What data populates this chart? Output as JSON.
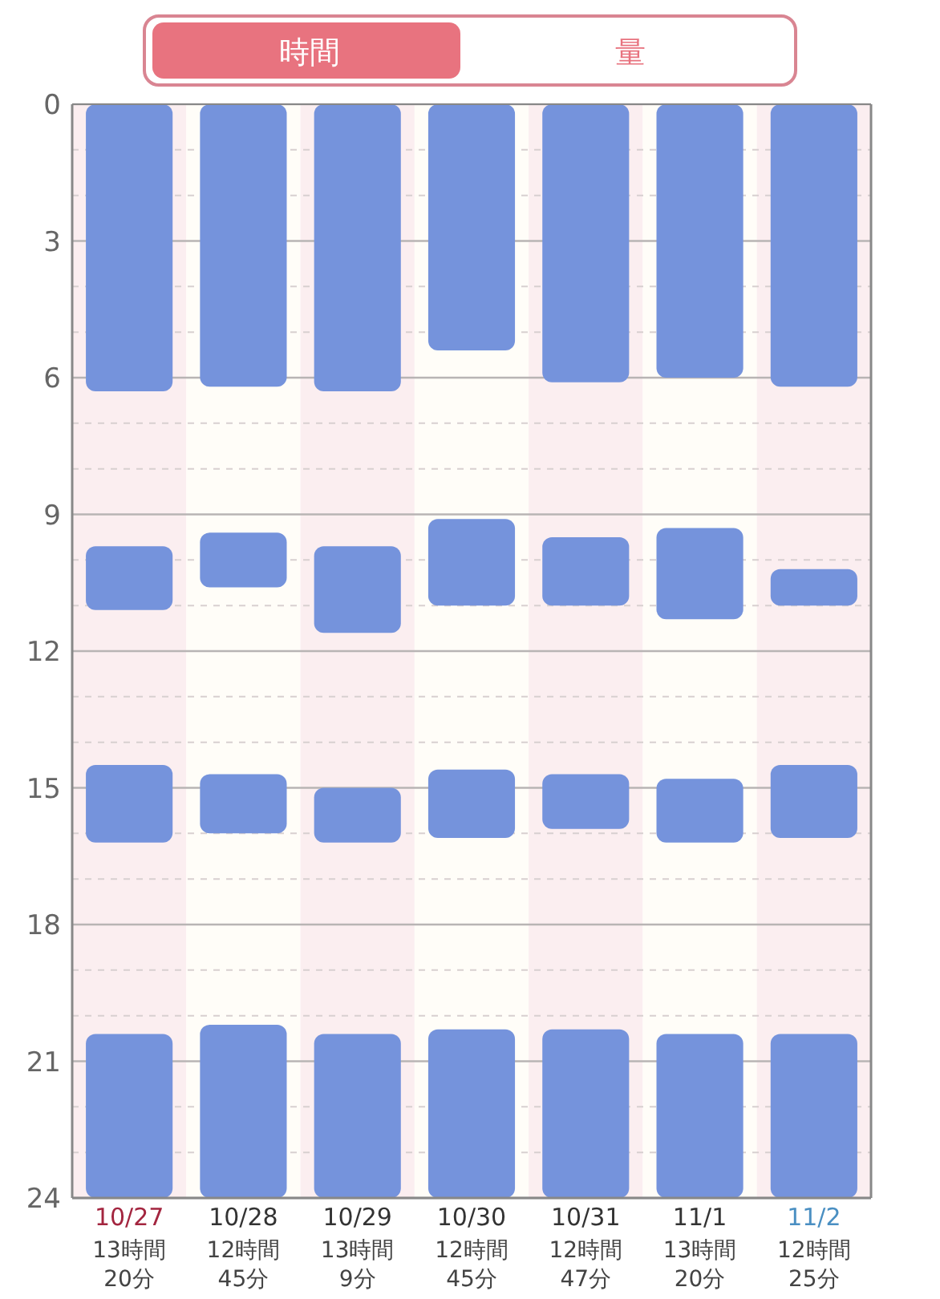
{
  "chart_data": {
    "type": "bar",
    "annotations": [
      "時間",
      "量"
    ],
    "categories": [
      "10/27",
      "10/28",
      "10/29",
      "10/30",
      "10/31",
      "11/1",
      "11/2"
    ],
    "series": [
      {
        "color": "#7593dc",
        "base": [
          0,
          0,
          0,
          0,
          0,
          0,
          0
        ],
        "values": [
          6.3,
          6.2,
          6.3,
          5.4,
          6.1,
          6.0,
          6.2
        ]
      },
      {
        "color": "#7593dc",
        "base": [
          9.7,
          9.4,
          9.7,
          9.1,
          9.5,
          9.3,
          10.2
        ],
        "values": [
          1.4,
          1.2,
          1.9,
          1.9,
          1.5,
          2.0,
          0.8
        ]
      },
      {
        "color": "#7593dc",
        "base": [
          14.5,
          14.7,
          15.0,
          14.6,
          14.7,
          14.8,
          14.5
        ],
        "values": [
          1.7,
          1.3,
          1.2,
          1.5,
          1.2,
          1.4,
          1.6
        ]
      },
      {
        "color": "#7593dc",
        "base": [
          20.4,
          20.2,
          20.4,
          20.3,
          20.3,
          20.4,
          20.4
        ],
        "values": [
          3.6,
          3.8,
          3.6,
          3.7,
          3.7,
          3.6,
          3.6
        ]
      }
    ],
    "totals": [
      "13時間20分",
      "12時間45分",
      "13時間9分",
      "12時間45分",
      "12時間47分",
      "13時間20分",
      "12時間25分"
    ],
    "ylim": [
      24,
      0
    ],
    "yticks": [
      0,
      3,
      6,
      9,
      12,
      15,
      18,
      21,
      24
    ],
    "grid": "y"
  }
}
